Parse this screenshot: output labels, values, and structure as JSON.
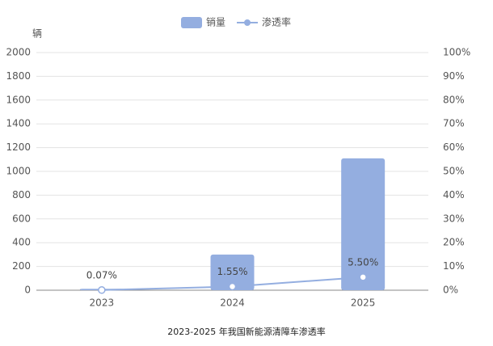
{
  "chart_data": {
    "type": "bar",
    "title": "2023-2025 年我国新能源清障车渗透率",
    "ylabel": "辆",
    "categories": [
      "2023",
      "2024",
      "2025"
    ],
    "series": [
      {
        "name": "销量",
        "type": "bar",
        "color": "#94aee0",
        "values": [
          12,
          300,
          1110
        ]
      },
      {
        "name": "渗透率",
        "type": "line",
        "axis": "y2",
        "color": "#94aee0",
        "values": [
          0.07,
          1.55,
          5.5
        ],
        "value_labels": [
          "0.07%",
          "1.55%",
          "5.50%"
        ]
      }
    ],
    "ylim": [
      0,
      2000
    ],
    "yticks": [
      0,
      200,
      400,
      600,
      800,
      1000,
      1200,
      1400,
      1600,
      1800,
      2000
    ],
    "y2lim": [
      0,
      100
    ],
    "y2ticks": [
      {
        "value": 0,
        "label": "0%"
      },
      {
        "value": 10,
        "label": "10%"
      },
      {
        "value": 20,
        "label": "20%"
      },
      {
        "value": 30,
        "label": "30%"
      },
      {
        "value": 40,
        "label": "40%"
      },
      {
        "value": 50,
        "label": "50%"
      },
      {
        "value": 60,
        "label": "60%"
      },
      {
        "value": 70,
        "label": "70%"
      },
      {
        "value": 80,
        "label": "80%"
      },
      {
        "value": 90,
        "label": "90%"
      },
      {
        "value": 100,
        "label": "100%"
      }
    ],
    "grid": true
  }
}
